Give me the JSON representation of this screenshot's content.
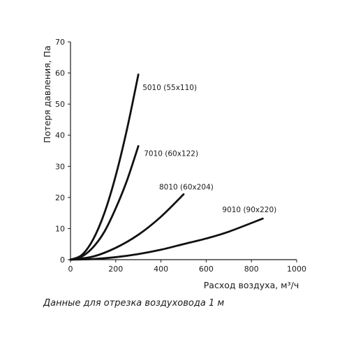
{
  "chart_data": {
    "type": "line",
    "xlabel": "Расход воздуха, м³/ч",
    "ylabel": "Потеря давления, Па",
    "xlim": [
      0,
      1000
    ],
    "ylim": [
      0,
      70
    ],
    "x_ticks": [
      "0",
      "200",
      "400",
      "600",
      "800",
      "1000"
    ],
    "y_ticks": [
      "0",
      "10",
      "20",
      "30",
      "40",
      "50",
      "60",
      "70"
    ],
    "grid": false,
    "series": [
      {
        "name": "5010 (55x110)",
        "x": [
          0,
          50,
          100,
          150,
          200,
          250,
          300
        ],
        "y": [
          0,
          1.5,
          6.5,
          15,
          27,
          42,
          59.5
        ]
      },
      {
        "name": "7010 (60x122)",
        "x": [
          0,
          50,
          100,
          150,
          200,
          250,
          300
        ],
        "y": [
          0,
          1.0,
          4.0,
          9.0,
          16.5,
          25.5,
          36.5
        ]
      },
      {
        "name": "8010 (60x204)",
        "x": [
          0,
          100,
          200,
          300,
          400,
          500
        ],
        "y": [
          0,
          1.0,
          3.8,
          8.0,
          13.8,
          21
        ]
      },
      {
        "name": "9010 (90x220)",
        "x": [
          0,
          100,
          200,
          300,
          400,
          500,
          600,
          700,
          850
        ],
        "y": [
          0,
          0.2,
          0.8,
          1.8,
          3.2,
          5.0,
          6.8,
          9.0,
          13.2
        ]
      }
    ]
  },
  "caption": "Данные для отрезка воздуховода 1 м"
}
